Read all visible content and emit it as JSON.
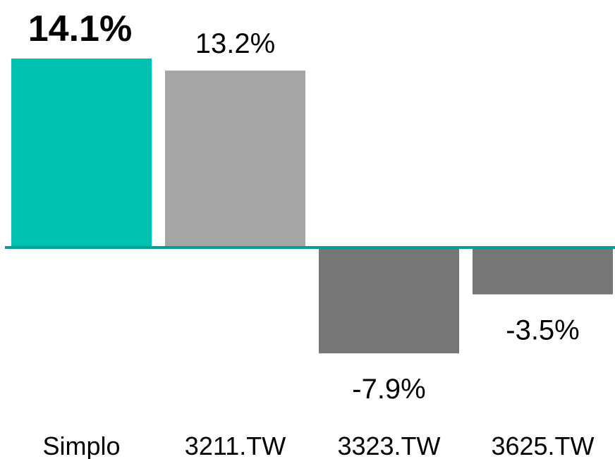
{
  "chart_data": {
    "type": "bar",
    "categories": [
      "Simplo",
      "3211.TW",
      "3323.TW",
      "3625.TW"
    ],
    "values": [
      14.1,
      13.2,
      -7.9,
      -3.5
    ],
    "value_labels": [
      "14.1%",
      "13.2%",
      "-7.9%",
      "-3.5%"
    ],
    "colors": [
      "#00c0b0",
      "#a5a5a5",
      "#767676",
      "#767676"
    ],
    "highlight": "Simplo",
    "baseline_color": "#00a093"
  }
}
